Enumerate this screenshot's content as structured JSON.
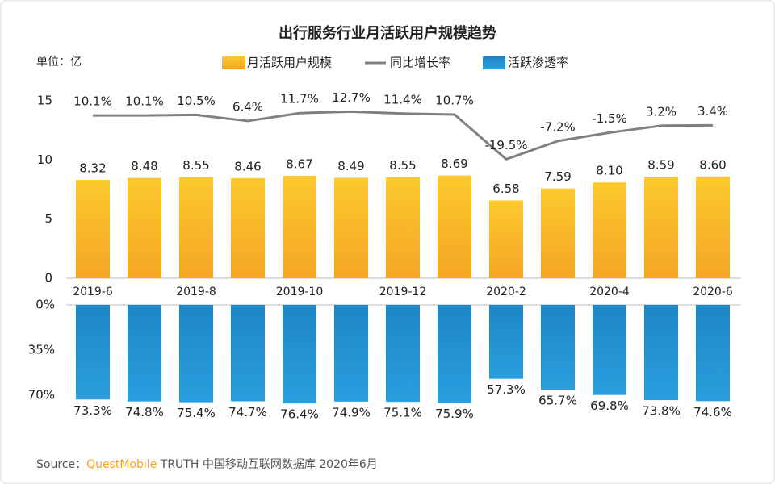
{
  "chart_data": [
    {
      "type": "bar",
      "title": "出行服务行业月活跃用户规模趋势",
      "unit_label": "单位：亿",
      "categories": [
        "2019-6",
        null,
        "2019-8",
        null,
        "2019-10",
        null,
        "2019-12",
        null,
        "2020-2",
        null,
        "2020-4",
        null,
        "2020-6"
      ],
      "series": [
        {
          "name": "月活跃用户规模",
          "type": "bar",
          "color": "#f7b226",
          "values": [
            8.32,
            8.48,
            8.55,
            8.46,
            8.67,
            8.49,
            8.55,
            8.69,
            6.58,
            7.59,
            8.1,
            8.59,
            8.6
          ],
          "value_labels": [
            "8.32",
            "8.48",
            "8.55",
            "8.46",
            "8.67",
            "8.49",
            "8.55",
            "8.69",
            "6.58",
            "7.59",
            "8.10",
            "8.59",
            "8.60"
          ]
        },
        {
          "name": "同比增长率",
          "type": "line",
          "axis": "y2",
          "color": "#808080",
          "values": [
            10.1,
            10.1,
            10.5,
            6.4,
            11.7,
            12.7,
            11.4,
            10.7,
            -19.5,
            -7.2,
            -1.5,
            3.2,
            3.4
          ],
          "value_labels": [
            "10.1%",
            "10.1%",
            "10.5%",
            "6.4%",
            "11.7%",
            "12.7%",
            "11.4%",
            "10.7%",
            "-19.5%",
            "-7.2%",
            "-1.5%",
            "3.2%",
            "3.4%"
          ]
        }
      ],
      "ylim": [
        0,
        15
      ],
      "yticks": [
        0,
        5,
        10,
        15
      ],
      "y2lim": [
        -100,
        20
      ]
    },
    {
      "type": "bar",
      "series": [
        {
          "name": "活跃渗透率",
          "type": "bar",
          "color": "#1e8ccc",
          "values": [
            73.3,
            74.8,
            75.4,
            74.7,
            76.4,
            74.9,
            75.1,
            75.9,
            57.3,
            65.7,
            69.8,
            73.8,
            74.6
          ],
          "value_labels": [
            "73.3%",
            "74.8%",
            "75.4%",
            "74.7%",
            "76.4%",
            "74.9%",
            "75.1%",
            "75.9%",
            "57.3%",
            "65.7%",
            "69.8%",
            "73.8%",
            "74.6%"
          ]
        }
      ],
      "ylim": [
        0,
        70
      ],
      "inverted": true,
      "yticks": [
        {
          "value": 0,
          "label": "0%"
        },
        {
          "value": 35,
          "label": "35%"
        },
        {
          "value": 70,
          "label": "70%"
        }
      ]
    }
  ],
  "source": [
    "Source：",
    "QuestMobile",
    " TRUTH 中国移动互联网数据库 2020年6月"
  ]
}
